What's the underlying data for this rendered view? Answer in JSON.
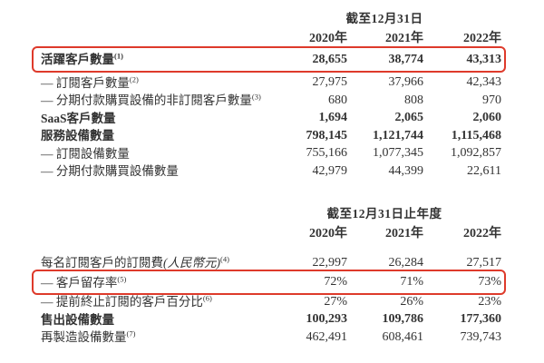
{
  "page": {
    "background_color": "#ffffff",
    "text_color": "#333333",
    "highlight_border_color": "#de3a2b"
  },
  "table1": {
    "period_header": "截至12月31日",
    "years": [
      "2020年",
      "2021年",
      "2022年"
    ],
    "rows": [
      {
        "label": "活躍客戶數量",
        "sup": "(1)",
        "values": [
          "28,655",
          "38,774",
          "43,313"
        ]
      },
      {
        "label": "— 訂閱客戶數量",
        "sup": "(2)",
        "values": [
          "27,975",
          "37,966",
          "42,343"
        ]
      },
      {
        "label": "— 分期付款購買設備的非訂閱客戶數量",
        "sup": "(3)",
        "values": [
          "680",
          "808",
          "970"
        ]
      },
      {
        "label": "SaaS客戶數量",
        "values": [
          "1,694",
          "2,065",
          "2,060"
        ]
      },
      {
        "label": "服務設備數量",
        "values": [
          "798,145",
          "1,121,744",
          "1,115,468"
        ]
      },
      {
        "label": "— 訂閱設備數量",
        "values": [
          "755,166",
          "1,077,345",
          "1,092,857"
        ]
      },
      {
        "label": "— 分期付款購買設備數量",
        "values": [
          "42,979",
          "44,399",
          "22,611"
        ]
      }
    ]
  },
  "table2": {
    "period_header": "截至12月31日止年度",
    "years": [
      "2020年",
      "2021年",
      "2022年"
    ],
    "rows": [
      {
        "label": "每名訂閱客戶的訂閱費",
        "label_paren": "(人民幣元)",
        "sup": "(4)",
        "values": [
          "22,997",
          "26,284",
          "27,517"
        ]
      },
      {
        "label": "— 客戶留存率",
        "sup": "(5)",
        "values": [
          "72%",
          "71%",
          "73%"
        ]
      },
      {
        "label": "— 提前終止訂閱的客戶百分比",
        "sup": "(6)",
        "values": [
          "27%",
          "26%",
          "23%"
        ]
      },
      {
        "label": "售出設備數量",
        "values": [
          "100,293",
          "109,786",
          "177,360"
        ]
      },
      {
        "label": "再製造設備數量",
        "sup": "(7)",
        "values": [
          "462,491",
          "608,461",
          "739,743"
        ]
      }
    ]
  }
}
